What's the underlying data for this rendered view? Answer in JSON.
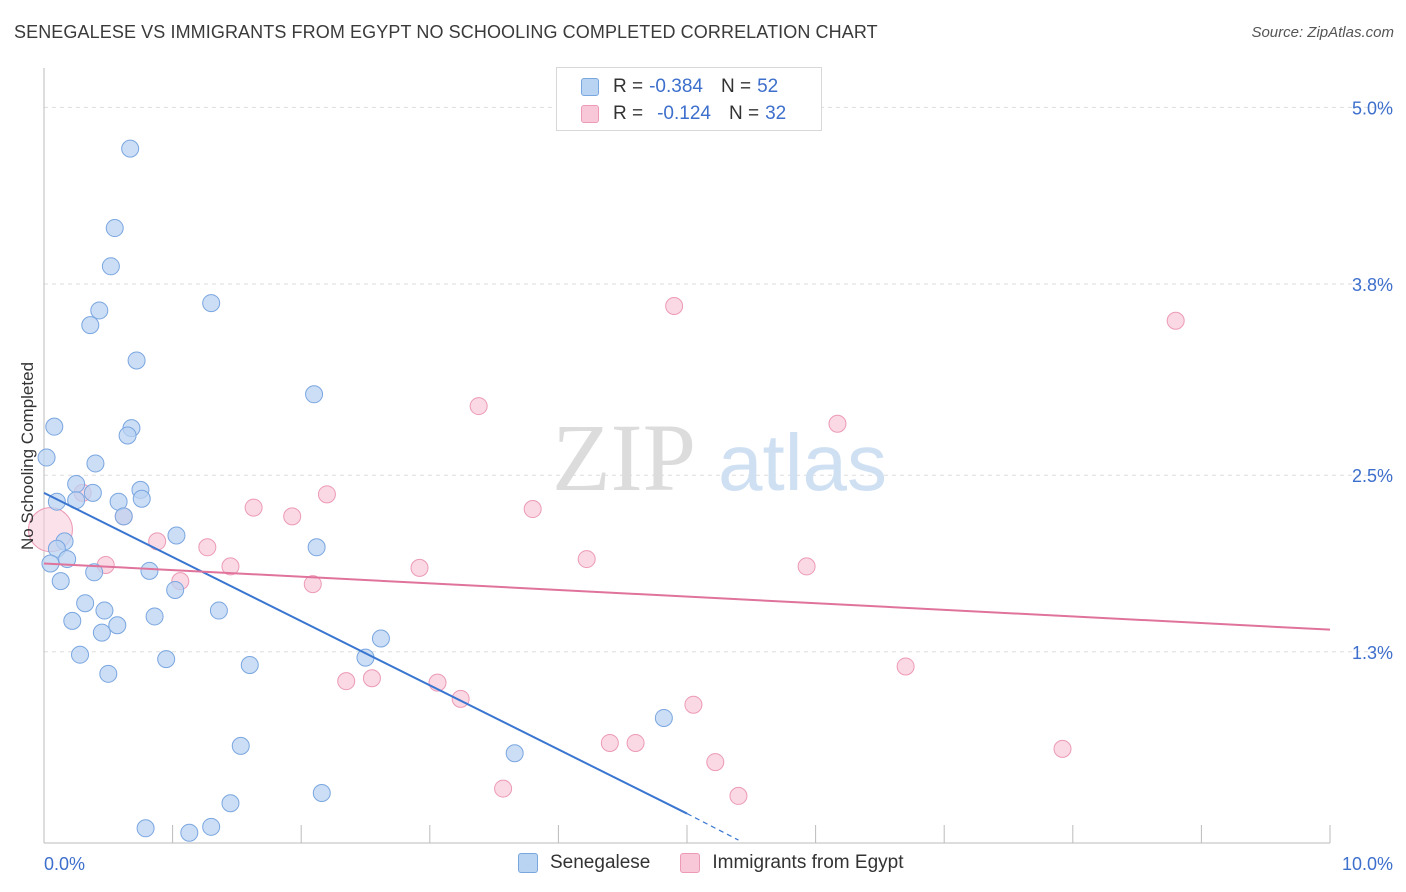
{
  "title": "SENEGALESE VS IMMIGRANTS FROM EGYPT NO SCHOOLING COMPLETED CORRELATION CHART",
  "source": "Source: ZipAtlas.com",
  "watermark": {
    "zip": "ZIP",
    "atlas": "atlas"
  },
  "legend": {
    "rows": [
      {
        "r_label": "R =",
        "r_value": "-0.384",
        "n_label": "N =",
        "n_value": "52"
      },
      {
        "r_label": "R =",
        "r_value": "-0.124",
        "n_label": "N =",
        "n_value": "32"
      }
    ]
  },
  "colors": {
    "blue_fill": "#b9d3f2",
    "blue_stroke": "#7aa6e0",
    "blue_line": "#3a76d0",
    "pink_fill": "#f8c8d8",
    "pink_stroke": "#ec9ab6",
    "pink_line": "#e0739b",
    "tick_label": "#3d6fcc",
    "grid": "#dddddd"
  },
  "chart_data": {
    "type": "scatter",
    "title": "SENEGALESE VS IMMIGRANTS FROM EGYPT NO SCHOOLING COMPLETED CORRELATION CHART",
    "xlabel": "",
    "ylabel": "No Schooling Completed",
    "xlim": [
      0,
      10
    ],
    "ylim": [
      0,
      5.2
    ],
    "x_tick_labels": [
      {
        "value": 0,
        "label": "0.0%"
      },
      {
        "value": 10,
        "label": "10.0%"
      }
    ],
    "y_tick_labels": [
      {
        "value": 1.3,
        "label": "1.3%"
      },
      {
        "value": 2.5,
        "label": "2.5%"
      },
      {
        "value": 3.8,
        "label": "3.8%"
      },
      {
        "value": 5.0,
        "label": "5.0%"
      }
    ],
    "series": [
      {
        "name": "Senegalese",
        "r": -0.384,
        "n": 52,
        "trend": {
          "x0": 0.0,
          "y0": 2.38,
          "x1": 5.0,
          "y1": 0.2,
          "dash_to_x": 5.4,
          "dash_to_y": 0.02
        },
        "points": [
          [
            0.67,
            4.72
          ],
          [
            0.55,
            4.18
          ],
          [
            0.52,
            3.92
          ],
          [
            0.43,
            3.62
          ],
          [
            0.36,
            3.52
          ],
          [
            0.72,
            3.28
          ],
          [
            1.3,
            3.67
          ],
          [
            2.1,
            3.05
          ],
          [
            0.08,
            2.83
          ],
          [
            0.68,
            2.82
          ],
          [
            0.65,
            2.77
          ],
          [
            0.02,
            2.62
          ],
          [
            0.4,
            2.58
          ],
          [
            0.25,
            2.44
          ],
          [
            0.38,
            2.38
          ],
          [
            0.75,
            2.4
          ],
          [
            0.1,
            2.32
          ],
          [
            0.25,
            2.33
          ],
          [
            0.58,
            2.32
          ],
          [
            0.76,
            2.34
          ],
          [
            0.62,
            2.22
          ],
          [
            1.03,
            2.09
          ],
          [
            0.16,
            2.05
          ],
          [
            0.1,
            2.0
          ],
          [
            2.12,
            2.01
          ],
          [
            0.18,
            1.93
          ],
          [
            0.05,
            1.9
          ],
          [
            0.39,
            1.84
          ],
          [
            0.82,
            1.85
          ],
          [
            0.13,
            1.78
          ],
          [
            1.02,
            1.72
          ],
          [
            0.32,
            1.63
          ],
          [
            0.47,
            1.58
          ],
          [
            1.36,
            1.58
          ],
          [
            0.86,
            1.54
          ],
          [
            0.22,
            1.51
          ],
          [
            0.57,
            1.48
          ],
          [
            0.45,
            1.43
          ],
          [
            2.62,
            1.39
          ],
          [
            0.28,
            1.28
          ],
          [
            2.5,
            1.26
          ],
          [
            0.95,
            1.25
          ],
          [
            1.6,
            1.21
          ],
          [
            0.5,
            1.15
          ],
          [
            4.82,
            0.85
          ],
          [
            1.53,
            0.66
          ],
          [
            3.66,
            0.61
          ],
          [
            2.16,
            0.34
          ],
          [
            1.45,
            0.27
          ],
          [
            0.79,
            0.1
          ],
          [
            1.3,
            0.11
          ],
          [
            1.13,
            0.07
          ]
        ]
      },
      {
        "name": "Immigrants from Egypt",
        "r": -0.124,
        "n": 32,
        "trend": {
          "x0": 0.0,
          "y0": 1.9,
          "x1": 10.0,
          "y1": 1.45
        },
        "points": [
          [
            0.05,
            2.13
          ],
          [
            4.9,
            3.65
          ],
          [
            8.8,
            3.55
          ],
          [
            3.38,
            2.97
          ],
          [
            6.17,
            2.85
          ],
          [
            2.2,
            2.37
          ],
          [
            0.3,
            2.38
          ],
          [
            1.63,
            2.28
          ],
          [
            3.8,
            2.27
          ],
          [
            1.93,
            2.22
          ],
          [
            0.62,
            2.22
          ],
          [
            0.88,
            2.05
          ],
          [
            1.27,
            2.01
          ],
          [
            4.22,
            1.93
          ],
          [
            0.48,
            1.89
          ],
          [
            1.45,
            1.88
          ],
          [
            2.92,
            1.87
          ],
          [
            5.93,
            1.88
          ],
          [
            1.06,
            1.78
          ],
          [
            2.09,
            1.76
          ],
          [
            6.7,
            1.2
          ],
          [
            2.55,
            1.12
          ],
          [
            2.35,
            1.1
          ],
          [
            3.06,
            1.09
          ],
          [
            3.24,
            0.98
          ],
          [
            5.05,
            0.94
          ],
          [
            4.4,
            0.68
          ],
          [
            4.6,
            0.68
          ],
          [
            7.92,
            0.64
          ],
          [
            5.22,
            0.55
          ],
          [
            3.57,
            0.37
          ],
          [
            5.4,
            0.32
          ]
        ]
      }
    ]
  },
  "bottom_legend": {
    "items": [
      {
        "label": "Senegalese"
      },
      {
        "label": "Immigrants from Egypt"
      }
    ]
  }
}
